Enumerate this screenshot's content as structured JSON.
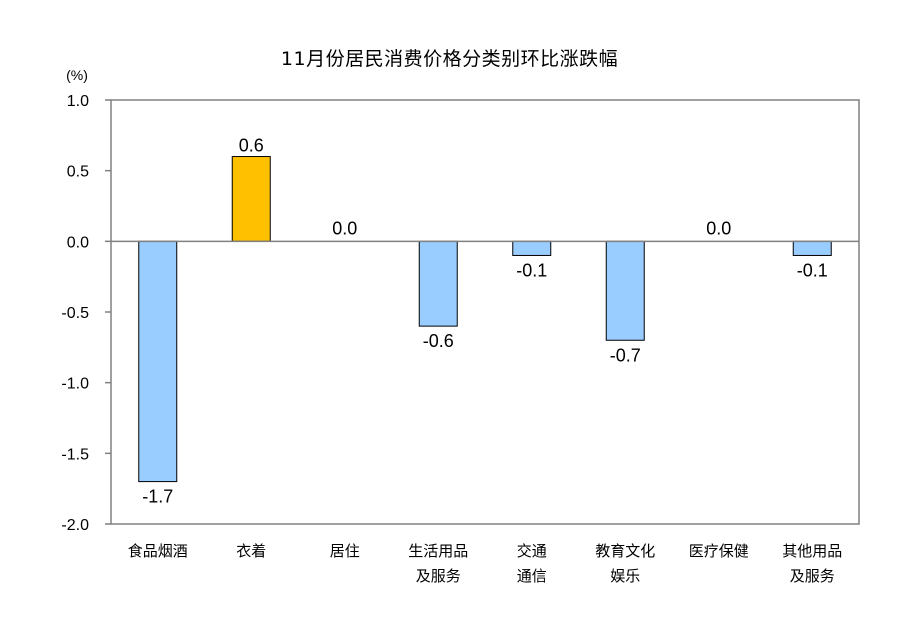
{
  "chart_data": {
    "type": "bar",
    "title": "11月份居民消费价格分类别环比涨跌幅",
    "ylabel": "(%)",
    "xlabel": "",
    "ylim": [
      -2.0,
      1.0
    ],
    "yticks": [
      "1.0",
      "0.5",
      "0.0",
      "-0.5",
      "-1.0",
      "-1.5",
      "-2.0"
    ],
    "yticks_values": [
      1.0,
      0.5,
      0.0,
      -0.5,
      -1.0,
      -1.5,
      -2.0
    ],
    "categories": [
      [
        "食品烟酒"
      ],
      [
        "衣着"
      ],
      [
        "居住"
      ],
      [
        "生活用品",
        "及服务"
      ],
      [
        "交通",
        "通信"
      ],
      [
        "教育文化",
        "娱乐"
      ],
      [
        "医疗保健"
      ],
      [
        "其他用品",
        "及服务"
      ]
    ],
    "values": [
      -1.7,
      0.6,
      0.0,
      -0.6,
      -0.1,
      -0.7,
      0.0,
      -0.1
    ],
    "data_labels": [
      "-1.7",
      "0.6",
      "0.0",
      "-0.6",
      "-0.1",
      "-0.7",
      "0.0",
      "-0.1"
    ],
    "grid": false,
    "legend": "none",
    "colors": {
      "negative_fill": "#99ccff",
      "positive_fill": "#ffc000",
      "bar_stroke": "#000000",
      "axis": "#808080",
      "frame": "#808080"
    }
  }
}
